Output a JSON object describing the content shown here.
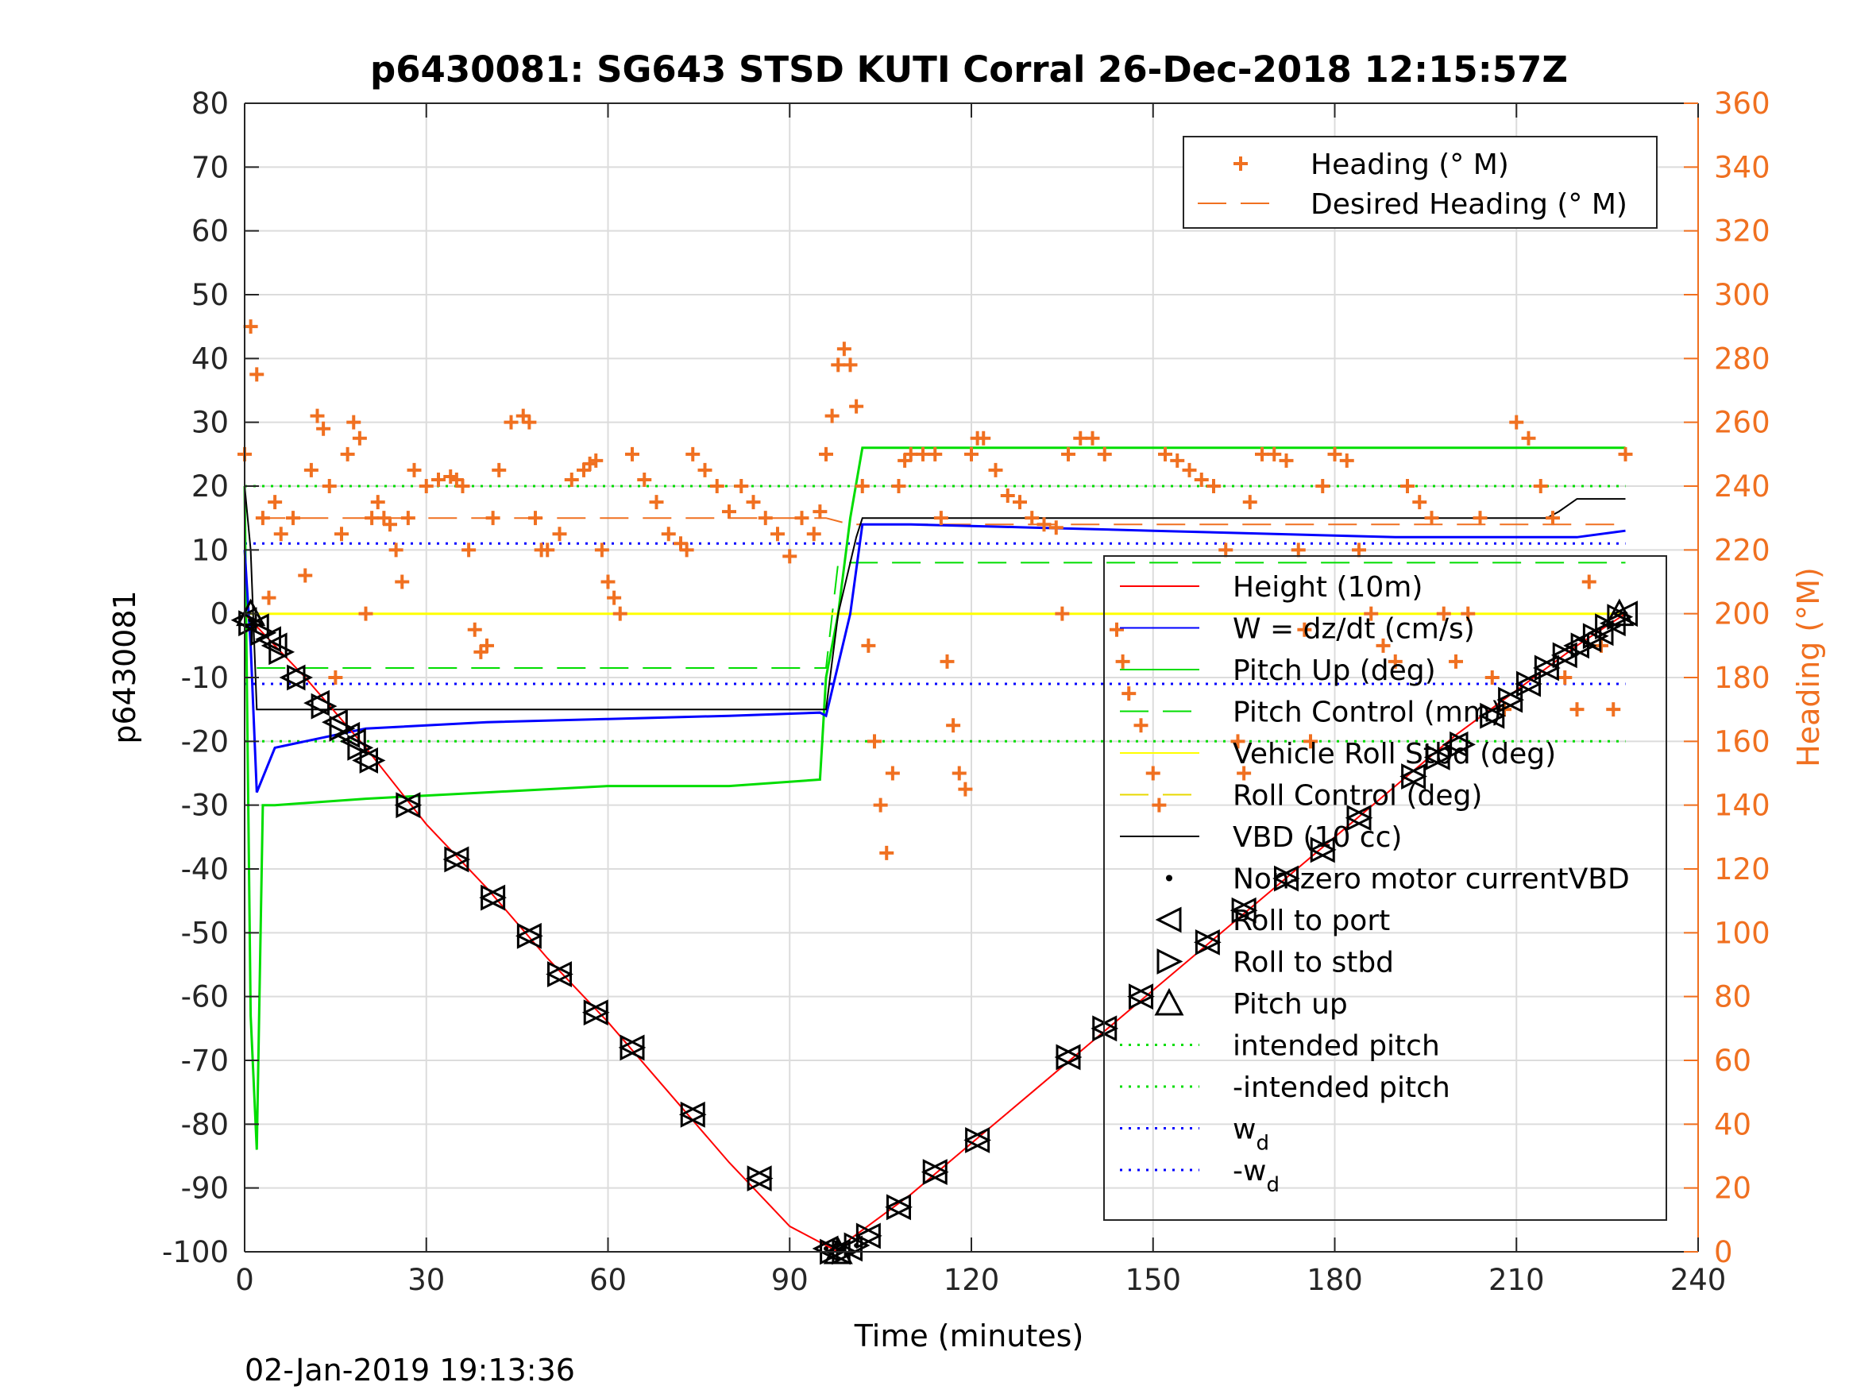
{
  "chart_data": {
    "type": "line",
    "title": "p6430081: SG643 STSD KUTI Corral 26-Dec-2018 12:15:57Z",
    "xlabel": "Time (minutes)",
    "ylabel": "p6430081",
    "ylabel_right": "Heading (°M)",
    "timestamp": "02-Jan-2019 19:13:36",
    "xlim": [
      0,
      240
    ],
    "ylim": [
      -100,
      80
    ],
    "ylim_right": [
      0,
      360
    ],
    "xticks": [
      "0",
      "30",
      "60",
      "90",
      "120",
      "150",
      "180",
      "210",
      "240"
    ],
    "yticks": [
      "80",
      "70",
      "60",
      "50",
      "40",
      "30",
      "20",
      "10",
      "0",
      "-10",
      "-20",
      "-30",
      "-40",
      "-50",
      "-60",
      "-70",
      "-80",
      "-90",
      "-100"
    ],
    "yticks_right": [
      "360",
      "340",
      "320",
      "300",
      "280",
      "260",
      "240",
      "220",
      "200",
      "180",
      "160",
      "140",
      "120",
      "100",
      "80",
      "60",
      "40",
      "20",
      "0"
    ],
    "grid": true,
    "colors": {
      "height": "#ff0000",
      "w": "#0000ff",
      "pitch": "#00dd00",
      "roll": "#ffff00",
      "vbd": "#000000",
      "heading": "#f07020",
      "right_axis": "#f07020"
    },
    "legend_heading": [
      {
        "label": "Heading (° M)",
        "style": "plus"
      },
      {
        "label": "Desired Heading (° M)",
        "style": "dash"
      }
    ],
    "legend_main": [
      {
        "label": "Height (10m)"
      },
      {
        "label": "W = dz/dt (cm/s)"
      },
      {
        "label": "Pitch Up (deg)"
      },
      {
        "label": "Pitch Control (mm)"
      },
      {
        "label": "Vehicle Roll Stbd (deg)"
      },
      {
        "label": "Roll Control (deg)"
      },
      {
        "label": "VBD (10 cc)"
      },
      {
        "label": "Non-zero motor currentVBD"
      },
      {
        "label": "Roll to port"
      },
      {
        "label": "Roll to stbd"
      },
      {
        "label": "Pitch up"
      },
      {
        "label": "intended pitch"
      },
      {
        "label": "-intended pitch"
      },
      {
        "label": "w",
        "sub": "d"
      },
      {
        "label": "-w",
        "sub": "d"
      }
    ],
    "series": [
      {
        "name": "Height (10m)",
        "x": [
          0,
          10,
          20,
          30,
          40,
          50,
          60,
          70,
          80,
          90,
          98,
          100,
          110,
          120,
          130,
          140,
          150,
          160,
          170,
          180,
          190,
          200,
          210,
          220,
          228
        ],
        "y": [
          0,
          -10,
          -21,
          -33,
          -43,
          -54,
          -64,
          -75,
          -86,
          -96,
          -100,
          -98,
          -91,
          -83,
          -75,
          -67,
          -59,
          -51,
          -43,
          -35,
          -27,
          -19,
          -12,
          -5,
          0
        ]
      },
      {
        "name": "W = dz/dt (cm/s)",
        "x": [
          0,
          1,
          2,
          5,
          10,
          20,
          40,
          60,
          80,
          95,
          96,
          100,
          102,
          110,
          130,
          150,
          170,
          190,
          210,
          220,
          228
        ],
        "y": [
          10,
          -5,
          -28,
          -21,
          -20,
          -18,
          -17,
          -16.5,
          -16,
          -15.5,
          -16,
          0,
          14,
          14,
          13.5,
          13,
          12.5,
          12,
          12,
          12,
          13
        ]
      },
      {
        "name": "Pitch Up (deg)",
        "x": [
          0,
          1,
          2,
          3,
          5,
          20,
          40,
          60,
          80,
          95,
          96,
          98,
          100,
          102,
          110,
          140,
          180,
          210,
          228
        ],
        "y": [
          20,
          -63,
          -84,
          -30,
          -30,
          -29,
          -28,
          -27,
          -27,
          -26,
          -10,
          0,
          15,
          26,
          26,
          26,
          26,
          26,
          26
        ]
      },
      {
        "name": "Pitch Control (mm)",
        "x": [
          2,
          96,
          98,
          228
        ],
        "y": [
          -8.5,
          -8.5,
          8,
          8
        ]
      },
      {
        "name": "Vehicle Roll Stbd (deg)",
        "x": [
          0,
          228
        ],
        "y": [
          0,
          0
        ]
      },
      {
        "name": "Roll Control (deg)",
        "x": [
          0,
          228
        ],
        "y": [
          0,
          0
        ]
      },
      {
        "name": "VBD (10 cc)",
        "x": [
          0,
          1,
          2,
          96,
          98,
          101,
          102,
          215,
          217,
          220,
          228
        ],
        "y": [
          20,
          10,
          -15,
          -15,
          0,
          12,
          15,
          15,
          16,
          18,
          18
        ]
      },
      {
        "name": "intended pitch",
        "x": [
          0,
          228
        ],
        "y": [
          20,
          20
        ]
      },
      {
        "name": "-intended pitch",
        "x": [
          0,
          228
        ],
        "y": [
          -20,
          -20
        ]
      },
      {
        "name": "w_d",
        "x": [
          0,
          228
        ],
        "y": [
          11,
          11
        ]
      },
      {
        "name": "-w_d",
        "x": [
          0,
          228
        ],
        "y": [
          -11,
          -11
        ]
      },
      {
        "name": "Desired Heading (° M)",
        "axis": "right",
        "x": [
          2,
          96,
          100,
          228
        ],
        "y": [
          230,
          230,
          228,
          228
        ]
      },
      {
        "name": "Heading (° M)",
        "axis": "right",
        "x": [
          0,
          1,
          2,
          3,
          4,
          5,
          6,
          8,
          10,
          11,
          12,
          13,
          14,
          15,
          16,
          17,
          18,
          19,
          20,
          21,
          22,
          23,
          24,
          25,
          26,
          27,
          28,
          30,
          32,
          34,
          35,
          36,
          37,
          38,
          39,
          40,
          41,
          42,
          44,
          46,
          47,
          48,
          49,
          50,
          52,
          54,
          56,
          57,
          58,
          59,
          60,
          61,
          62,
          64,
          66,
          68,
          70,
          72,
          73,
          74,
          76,
          78,
          80,
          82,
          84,
          86,
          88,
          90,
          92,
          94,
          95,
          96,
          97,
          98,
          99,
          100,
          101,
          102,
          103,
          104,
          105,
          106,
          107,
          108,
          109,
          110,
          112,
          114,
          115,
          116,
          117,
          118,
          119,
          120,
          121,
          122,
          124,
          126,
          128,
          130,
          132,
          134,
          135,
          136,
          138,
          140,
          142,
          144,
          145,
          146,
          148,
          150,
          151,
          152,
          154,
          156,
          158,
          160,
          162,
          164,
          165,
          166,
          168,
          170,
          172,
          174,
          175,
          176,
          178,
          180,
          182,
          184,
          186,
          188,
          190,
          192,
          194,
          196,
          198,
          200,
          202,
          204,
          206,
          208,
          210,
          212,
          214,
          216,
          218,
          220,
          222,
          224,
          226,
          228
        ],
        "y": [
          250,
          290,
          275,
          230,
          205,
          235,
          225,
          230,
          212,
          245,
          262,
          258,
          240,
          180,
          225,
          250,
          260,
          255,
          200,
          230,
          235,
          230,
          228,
          220,
          210,
          230,
          245,
          240,
          242,
          243,
          242,
          240,
          220,
          195,
          188,
          190,
          230,
          245,
          260,
          262,
          260,
          230,
          220,
          220,
          225,
          242,
          245,
          247,
          248,
          220,
          210,
          205,
          200,
          250,
          242,
          235,
          225,
          222,
          220,
          250,
          245,
          240,
          232,
          240,
          235,
          230,
          225,
          218,
          230,
          225,
          232,
          250,
          262,
          278,
          283,
          278,
          265,
          240,
          190,
          160,
          140,
          125,
          150,
          240,
          248,
          250,
          250,
          250,
          230,
          185,
          165,
          150,
          145,
          250,
          255,
          255,
          245,
          237,
          235,
          230,
          228,
          227,
          200,
          250,
          255,
          255,
          250,
          195,
          185,
          175,
          165,
          150,
          140,
          250,
          248,
          245,
          242,
          240,
          220,
          160,
          150,
          235,
          250,
          250,
          248,
          220,
          195,
          160,
          240,
          250,
          248,
          220,
          200,
          190,
          185,
          240,
          235,
          230,
          200,
          185,
          200,
          230,
          180,
          170,
          260,
          255,
          240,
          230,
          180,
          170,
          210,
          190,
          170,
          250
        ]
      }
    ],
    "markers": {
      "roll_to_port": {
        "label": "Roll to port",
        "x": [
          0,
          2,
          4,
          5,
          8,
          12,
          15,
          17,
          18,
          20,
          27,
          35,
          41,
          47,
          52,
          58,
          64,
          74,
          85,
          96,
          98,
          100,
          103,
          108,
          114,
          121,
          136,
          142,
          148,
          159,
          165,
          172,
          178,
          184,
          193,
          197,
          200,
          206,
          209,
          212,
          215,
          218,
          220,
          222,
          224,
          226,
          228
        ],
        "y": [
          -1,
          -2,
          -4,
          -5,
          -10,
          -14,
          -17,
          -19,
          -20,
          -23,
          -30,
          -38.5,
          -44.5,
          -50.5,
          -56.5,
          -62.5,
          -68,
          -78.5,
          -88.5,
          -99.5,
          -100,
          -99.5,
          -97.5,
          -93,
          -87.5,
          -82.5,
          -69.5,
          -65,
          -60,
          -51.5,
          -46.5,
          -41.5,
          -37,
          -32,
          -25.5,
          -22.5,
          -20.5,
          -16,
          -13.5,
          -11,
          -8.5,
          -6.5,
          -5,
          -4,
          -3,
          -1.5,
          0
        ]
      },
      "roll_to_stbd": {
        "label": "Roll to stbd",
        "x": [
          1,
          3,
          6,
          9,
          13,
          16,
          19,
          21,
          27,
          35,
          41,
          47,
          52,
          58,
          64,
          74,
          85,
          97,
          99,
          101,
          103,
          108,
          114,
          121,
          136,
          142,
          148,
          159,
          165,
          172,
          178,
          184,
          193,
          197,
          201,
          206,
          209,
          212,
          215,
          218,
          221,
          223,
          225,
          227
        ],
        "y": [
          -1.5,
          -3,
          -6,
          -10,
          -14.5,
          -18,
          -21,
          -23,
          -30,
          -38.5,
          -44.5,
          -50.5,
          -56.5,
          -62.5,
          -68,
          -78.5,
          -88.5,
          -100,
          -100,
          -99,
          -97.5,
          -93,
          -87.5,
          -82.5,
          -69.5,
          -65,
          -60,
          -51.5,
          -46.5,
          -41.5,
          -37,
          -32,
          -25.5,
          -22.5,
          -20.5,
          -16,
          -13.5,
          -11,
          -8.5,
          -6.5,
          -5,
          -3.5,
          -2,
          -0.5
        ]
      },
      "pitch_up": {
        "label": "Pitch up",
        "x": [
          1,
          98,
          227
        ],
        "y": [
          0,
          -100,
          0
        ]
      },
      "motor_current": {
        "label": "Non-zero motor currentVBD",
        "x": [
          1,
          96,
          101,
          228
        ],
        "y": [
          -1,
          -99.5,
          -99,
          0
        ]
      }
    }
  }
}
